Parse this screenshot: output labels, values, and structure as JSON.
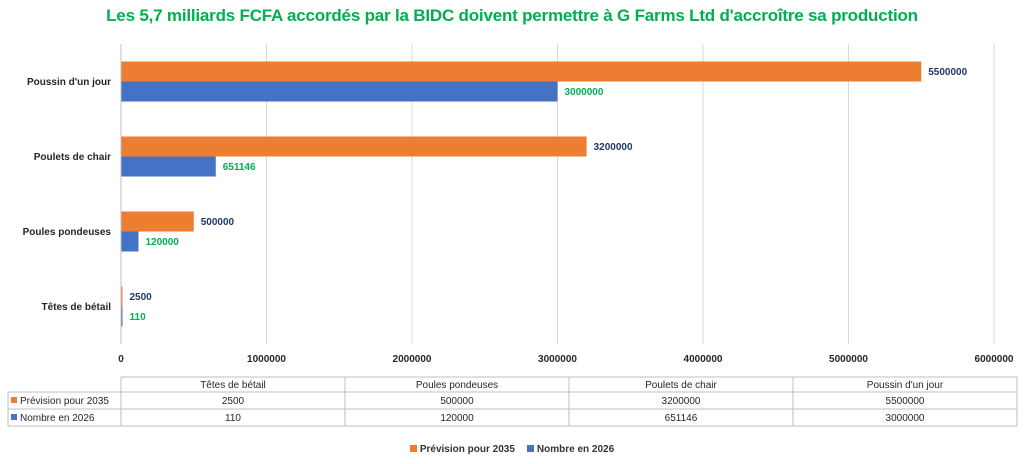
{
  "chart_data": {
    "type": "bar",
    "orientation": "horizontal",
    "title": "Les 5,7 milliards FCFA accordés par la BIDC doivent permettre à G Farms Ltd d'accroître sa production",
    "categories": [
      "Têtes de bétail",
      "Poules pondeuses",
      "Poulets de chair",
      "Poussin d'un jour"
    ],
    "series": [
      {
        "name": "Prévision pour 2035",
        "values": [
          2500,
          500000,
          3200000,
          5500000
        ],
        "color": "#ed7d31",
        "label_color": "#1f3864"
      },
      {
        "name": "Nombre en 2026",
        "values": [
          110,
          120000,
          651146,
          3000000
        ],
        "color": "#4472c4",
        "label_color": "#00b050"
      }
    ],
    "xlim": [
      0,
      6000000
    ],
    "xticks": [
      0,
      1000000,
      2000000,
      3000000,
      4000000,
      5000000,
      6000000
    ],
    "grid": "vertical",
    "data_table": true,
    "legend": "bottom-center"
  },
  "colors": {
    "title": "#00b050"
  }
}
